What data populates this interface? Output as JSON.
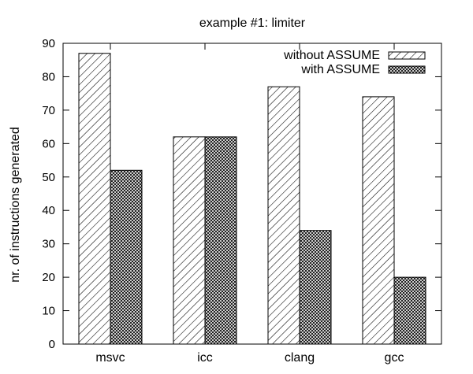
{
  "chart_data": {
    "type": "bar",
    "title": "example #1: limiter",
    "xlabel": "",
    "ylabel": "nr. of instructions generated",
    "categories": [
      "msvc",
      "icc",
      "clang",
      "gcc"
    ],
    "series": [
      {
        "name": "without ASSUME",
        "values": [
          87,
          62,
          77,
          74
        ],
        "pattern": "diagonal-hatch"
      },
      {
        "name": "with ASSUME",
        "values": [
          52,
          62,
          34,
          20
        ],
        "pattern": "crosshatch"
      }
    ],
    "ylim": [
      0,
      90
    ],
    "yticks": [
      0,
      10,
      20,
      30,
      40,
      50,
      60,
      70,
      80,
      90
    ],
    "grid": false,
    "legend_position": "top-right"
  }
}
